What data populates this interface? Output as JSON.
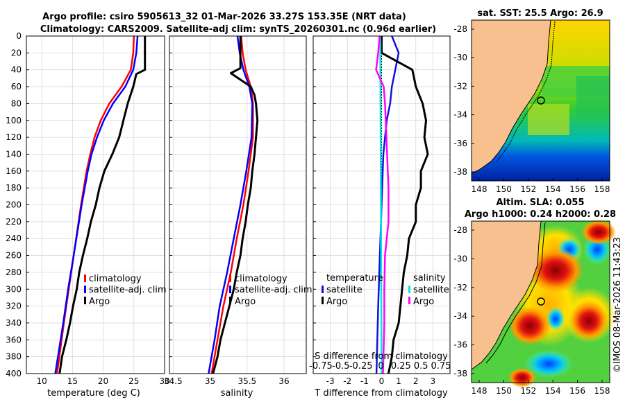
{
  "header": {
    "line1": "Argo profile: csiro 5905613_32 01-Mar-2026 33.27S 153.35E (NRT data)",
    "line2": "Climatology: CARS2009. Satellite-adj clim: synTS_20260301.nc (0.96d earlier)"
  },
  "colors": {
    "climatology": "#ff0000",
    "satellite": "#0000ff",
    "argo": "#000000",
    "t_sat": "#1010e0",
    "s_sat": "#00e5e5",
    "s_argo": "#ff00ff",
    "land": "#f7c08e"
  },
  "depth_ticks": [
    "0",
    "20",
    "40",
    "60",
    "80",
    "100",
    "120",
    "140",
    "160",
    "180",
    "200",
    "220",
    "240",
    "260",
    "280",
    "300",
    "320",
    "340",
    "360",
    "380",
    "400"
  ],
  "chart_data": [
    {
      "id": "temperature",
      "type": "line",
      "xlabel": "temperature (deg C)",
      "xlim": [
        7.5,
        30
      ],
      "ylim": [
        0,
        400
      ],
      "xticks": [
        "10",
        "15",
        "20",
        "25",
        "30"
      ],
      "xtick_values": [
        10,
        15,
        20,
        25,
        30
      ],
      "legend": [
        "climatology",
        "satellite-adj. clim",
        "Argo"
      ],
      "series": [
        {
          "name": "climatology",
          "depth": [
            0,
            20,
            40,
            60,
            80,
            100,
            120,
            140,
            160,
            200,
            260,
            300,
            340,
            400
          ],
          "values": [
            25.0,
            24.9,
            24.5,
            23.0,
            21.0,
            19.6,
            18.6,
            17.9,
            17.3,
            16.4,
            15.2,
            14.4,
            13.6,
            12.5
          ]
        },
        {
          "name": "satellite-adj. clim",
          "depth": [
            0,
            20,
            40,
            60,
            80,
            100,
            120,
            140,
            160,
            200,
            260,
            300,
            340,
            400
          ],
          "values": [
            25.6,
            25.4,
            24.9,
            23.6,
            21.6,
            20.1,
            19.0,
            18.1,
            17.5,
            16.5,
            15.2,
            14.3,
            13.5,
            12.2
          ]
        },
        {
          "name": "Argo",
          "depth": [
            0,
            20,
            40,
            45,
            60,
            80,
            100,
            120,
            140,
            160,
            180,
            200,
            220,
            240,
            260,
            280,
            300,
            320,
            340,
            360,
            380,
            400
          ],
          "values": [
            26.8,
            26.8,
            26.8,
            25.4,
            24.9,
            24.0,
            23.3,
            22.6,
            21.5,
            20.2,
            19.4,
            18.8,
            18.0,
            17.4,
            16.7,
            16.1,
            15.7,
            15.1,
            14.6,
            14.0,
            13.3,
            12.9
          ]
        }
      ]
    },
    {
      "id": "salinity",
      "type": "line",
      "xlabel": "salinity",
      "xlim": [
        34.45,
        36.3
      ],
      "ylim": [
        0,
        400
      ],
      "xticks": [
        "34.5",
        "35",
        "35.5",
        "36"
      ],
      "xtick_values": [
        34.5,
        35,
        35.5,
        36
      ],
      "legend": [
        "climatology",
        "satellite-adj. clim",
        "Argo"
      ],
      "series": [
        {
          "name": "climatology",
          "depth": [
            0,
            20,
            40,
            60,
            80,
            120,
            160,
            200,
            240,
            280,
            320,
            360,
            400
          ],
          "values": [
            35.42,
            35.44,
            35.48,
            35.55,
            35.58,
            35.58,
            35.52,
            35.45,
            35.36,
            35.28,
            35.18,
            35.1,
            35.02
          ]
        },
        {
          "name": "satellite-adj. clim",
          "depth": [
            0,
            20,
            40,
            60,
            80,
            120,
            160,
            200,
            240,
            280,
            320,
            360,
            400
          ],
          "values": [
            35.37,
            35.4,
            35.45,
            35.53,
            35.57,
            35.56,
            35.49,
            35.41,
            35.32,
            35.23,
            35.13,
            35.06,
            34.98
          ]
        },
        {
          "name": "Argo",
          "depth": [
            0,
            20,
            38,
            44,
            60,
            70,
            80,
            100,
            120,
            140,
            160,
            180,
            200,
            220,
            240,
            260,
            280,
            300,
            320,
            340,
            360,
            380,
            400
          ],
          "values": [
            35.41,
            35.41,
            35.41,
            35.28,
            35.55,
            35.6,
            35.62,
            35.64,
            35.62,
            35.6,
            35.57,
            35.55,
            35.51,
            35.48,
            35.44,
            35.41,
            35.36,
            35.32,
            35.26,
            35.2,
            35.14,
            35.1,
            35.04
          ]
        }
      ]
    },
    {
      "id": "differences",
      "type": "line",
      "xlabel": "T difference from climatology",
      "xlim": [
        -4,
        4
      ],
      "ylim": [
        0,
        400
      ],
      "xticks": [
        "-3",
        "-2",
        "-1",
        "0",
        "1",
        "2",
        "3"
      ],
      "xtick_values": [
        -3,
        -2,
        -1,
        0,
        1,
        2,
        3
      ],
      "secondary_axis": {
        "label": "S difference from climatology",
        "ticks": [
          "-0.75",
          "-0.5",
          "-0.25",
          "0",
          "0.25",
          "0.5",
          "0.75"
        ]
      },
      "legend_temperature": {
        "title": "temperature",
        "items": [
          "satellite",
          "Argo"
        ]
      },
      "legend_salinity": {
        "title": "salinity",
        "items": [
          "satellite",
          "Argo"
        ]
      },
      "series": [
        {
          "name": "temperature satellite",
          "depth": [
            0,
            20,
            40,
            60,
            80,
            100,
            140,
            200,
            260,
            320,
            400
          ],
          "values": [
            0.6,
            1.0,
            0.8,
            0.6,
            0.5,
            0.3,
            0.1,
            0.0,
            -0.1,
            -0.2,
            -0.3
          ]
        },
        {
          "name": "temperature Argo",
          "depth": [
            0,
            20,
            40,
            50,
            60,
            80,
            100,
            120,
            140,
            160,
            180,
            200,
            220,
            240,
            260,
            280,
            300,
            320,
            340,
            360,
            380,
            400
          ],
          "values": [
            0.0,
            0.0,
            1.8,
            1.9,
            2.0,
            2.4,
            2.6,
            2.5,
            2.7,
            2.3,
            2.3,
            2.0,
            2.0,
            1.6,
            1.5,
            1.3,
            1.2,
            1.1,
            1.0,
            0.7,
            0.6,
            0.4
          ]
        },
        {
          "name": "salinity satellite",
          "depth": [
            0,
            100,
            200,
            300,
            400
          ],
          "values": [
            -0.02,
            -0.015,
            -0.01,
            -0.005,
            0.0
          ]
        },
        {
          "name": "salinity Argo",
          "depth": [
            0,
            20,
            40,
            60,
            80,
            100,
            140,
            180,
            220,
            260,
            300,
            340,
            400
          ],
          "values": [
            -0.03,
            -0.05,
            -0.08,
            0.03,
            0.05,
            0.06,
            0.08,
            0.1,
            0.1,
            0.05,
            0.04,
            0.04,
            0.02
          ]
        }
      ]
    }
  ],
  "maps": {
    "sst": {
      "title": "sat. SST: 25.5 Argo: 26.9",
      "yticks": [
        "-28",
        "-30",
        "-32",
        "-34",
        "-36",
        "-38"
      ],
      "xticks": [
        "148",
        "150",
        "152",
        "154",
        "156",
        "158"
      ]
    },
    "sla": {
      "title1": "Altim. SLA: 0.055",
      "title2": "Argo h1000: 0.24 h2000: 0.28",
      "yticks": [
        "-28",
        "-30",
        "-32",
        "-34",
        "-36",
        "-38"
      ],
      "xticks": [
        "148",
        "150",
        "152",
        "154",
        "156",
        "158"
      ]
    },
    "float_position": {
      "lon": 153.35,
      "lat": -33.27
    }
  },
  "timestamp": "©IMOS 08-Mar-2026 11:43:23"
}
